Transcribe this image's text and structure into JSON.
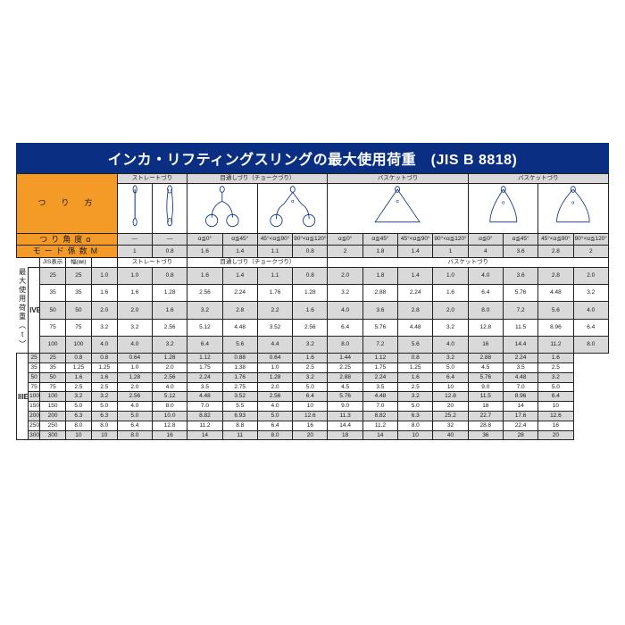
{
  "title": "インカ・リフティングスリングの最大使用荷重　(JIS B 8818)",
  "row_label_left": "つ　り　方",
  "section_headers": {
    "straight": "ストレートづり",
    "choke": "目通しづり（チョークづり）",
    "basket": "バスケットづり"
  },
  "angle_row_label": "つり角度α",
  "mode_row_label": "モード係数M",
  "jis_label": "JIS表示",
  "width_label": "幅(㎜)",
  "sub_labels": {
    "straight": "ストレートづり",
    "choke": "目通しづり（チョークづり）",
    "basket": "バスケットづり"
  },
  "angles": [
    "―",
    "―",
    "α≦0°",
    "α≦45°",
    "45°<α≦90°",
    "90°<α≦120°",
    "α≦0°",
    "α≦45°",
    "45°<α≦90°",
    "90°<α≦120°",
    "α≦0°",
    "α≦45°",
    "45°<α≦90°",
    "90°<α≦120°"
  ],
  "modes": [
    "1",
    "0.8",
    "1.6",
    "1.4",
    "1.1",
    "0.8",
    "2",
    "1.8",
    "1.4",
    "1",
    "4",
    "3.6",
    "2.8",
    "2"
  ],
  "side_label": "最大使用荷重（t）",
  "group1": "IVE-",
  "group2": "IIIE-",
  "rows_g1": [
    {
      "new": false,
      "jis": "25",
      "w": "25",
      "v": [
        "1.0",
        "1.0",
        "0.8",
        "1.6",
        "1.4",
        "1.1",
        "0.8",
        "2.0",
        "1.8",
        "1.4",
        "1.0",
        "4.0",
        "3.6",
        "2.8",
        "2.0"
      ]
    },
    {
      "new": true,
      "jis": "35",
      "w": "35",
      "v": [
        "1.6",
        "1.6",
        "1.28",
        "2.56",
        "2.24",
        "1.76",
        "1.28",
        "3.2",
        "2.88",
        "2.24",
        "1.6",
        "6.4",
        "5.76",
        "4.48",
        "3.2"
      ]
    },
    {
      "new": false,
      "jis": "50",
      "w": "50",
      "v": [
        "2.0",
        "2.0",
        "1.6",
        "3.2",
        "2.8",
        "2.2",
        "1.6",
        "4.0",
        "3.6",
        "2.8",
        "2.0",
        "8.0",
        "7.2",
        "5.6",
        "4.0"
      ]
    },
    {
      "new": false,
      "jis": "75",
      "w": "75",
      "v": [
        "3.2",
        "3.2",
        "2.56",
        "5.12",
        "4.48",
        "3.52",
        "2.56",
        "6.4",
        "5.76",
        "4.48",
        "3.2",
        "12.8",
        "11.5",
        "8.96",
        "6.4"
      ]
    },
    {
      "new": false,
      "jis": "100",
      "w": "100",
      "v": [
        "4.0",
        "4.0",
        "3.2",
        "6.4",
        "5.6",
        "4.4",
        "3.2",
        "8.0",
        "7.2",
        "5.6",
        "4.0",
        "16",
        "14.4",
        "11.2",
        "8.0"
      ]
    }
  ],
  "rows_g2": [
    {
      "jis": "25",
      "w": "25",
      "v": [
        "0.8",
        "0.8",
        "0.64",
        "1.28",
        "1.12",
        "0.88",
        "0.64",
        "1.6",
        "1.44",
        "1.12",
        "0.8",
        "3.2",
        "2.88",
        "2.24",
        "1.6"
      ]
    },
    {
      "jis": "35",
      "w": "35",
      "v": [
        "1.25",
        "1.25",
        "1.0",
        "2.0",
        "1.75",
        "1.38",
        "1.0",
        "2.5",
        "2.25",
        "1.75",
        "1.25",
        "5.0",
        "4.5",
        "3.5",
        "2.5"
      ]
    },
    {
      "jis": "50",
      "w": "50",
      "v": [
        "1.6",
        "1.6",
        "1.28",
        "2.56",
        "2.24",
        "1.76",
        "1.28",
        "3.2",
        "2.88",
        "2.24",
        "1.6",
        "6.4",
        "5.76",
        "4.48",
        "3.2"
      ]
    },
    {
      "jis": "75",
      "w": "75",
      "v": [
        "2.5",
        "2.5",
        "2.0",
        "4.0",
        "3.5",
        "2.75",
        "2.0",
        "5.0",
        "4.5",
        "3.5",
        "2.5",
        "10",
        "9.0",
        "7.0",
        "5.0"
      ]
    },
    {
      "jis": "100",
      "w": "100",
      "v": [
        "3.2",
        "3.2",
        "2.56",
        "5.12",
        "4.48",
        "3.52",
        "2.56",
        "6.4",
        "5.76",
        "4.48",
        "3.2",
        "12.8",
        "11.5",
        "8.96",
        "6.4"
      ]
    },
    {
      "jis": "150",
      "w": "150",
      "v": [
        "5.0",
        "5.0",
        "4.0",
        "8.0",
        "7.0",
        "5.5",
        "4.0",
        "10",
        "9.0",
        "7.0",
        "5.0",
        "20",
        "18",
        "14",
        "10"
      ]
    },
    {
      "jis": "200",
      "w": "200",
      "v": [
        "6.3",
        "6.3",
        "5.0",
        "10.0",
        "8.82",
        "6.93",
        "5.0",
        "12.6",
        "11.3",
        "8.82",
        "6.3",
        "25.2",
        "22.7",
        "17.6",
        "12.6"
      ]
    },
    {
      "jis": "250",
      "w": "250",
      "v": [
        "8.0",
        "8.0",
        "6.4",
        "12.8",
        "11.2",
        "8.8",
        "6.4",
        "16",
        "14.4",
        "11.2",
        "8.0",
        "32",
        "28.8",
        "22.4",
        "16"
      ]
    },
    {
      "jis": "300",
      "w": "300",
      "v": [
        "10",
        "10",
        "8.0",
        "16",
        "14",
        "11",
        "8.0",
        "20",
        "18",
        "14",
        "10",
        "40",
        "36",
        "28",
        "20"
      ]
    }
  ],
  "colors": {
    "title_bg": "#0a2f82",
    "header_bg": "#f39a27",
    "gray": "#d9d9d9",
    "border": "#222",
    "new": "#e60012"
  }
}
